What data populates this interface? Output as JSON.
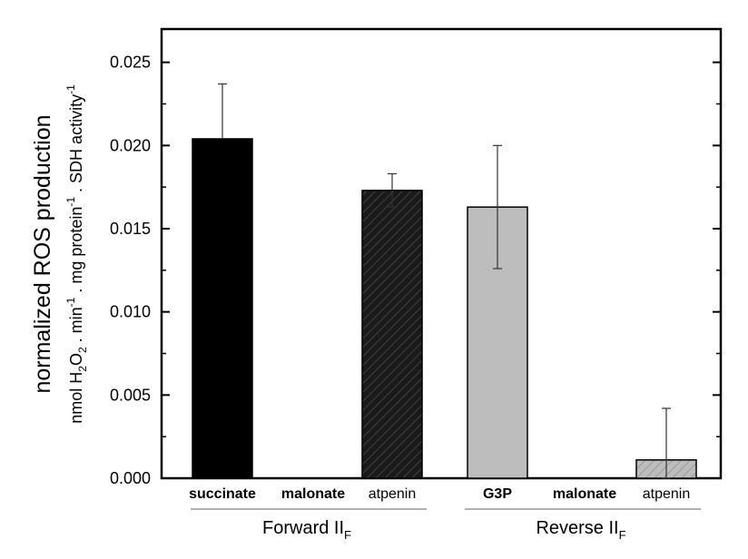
{
  "chart_data": {
    "type": "bar",
    "title": "",
    "ylabel_main": "normalized ROS production",
    "ylabel_units": {
      "nmol": "nmol H",
      "sub2": "2",
      "o": "O",
      "sub2b": "2",
      "min": " . min",
      "sup1a": "-1",
      "mg": " . mg protein",
      "sup1b": "-1",
      "sdh": " . SDH activity",
      "sup1c": "-1"
    },
    "ylim": [
      0,
      0.027
    ],
    "yticks": [
      "0.000",
      "0.005",
      "0.010",
      "0.015",
      "0.020",
      "0.025"
    ],
    "ytick_values": [
      0,
      0.005,
      0.01,
      0.015,
      0.02,
      0.025
    ],
    "categories": [
      "succinate",
      "malonate",
      "atpenin",
      "G3P",
      "malonate",
      "atpenin"
    ],
    "values": [
      0.0204,
      0.0,
      0.0173,
      0.0163,
      0.0,
      0.0011
    ],
    "errors": [
      0.0033,
      0.0,
      0.001,
      0.0037,
      0.0,
      0.0031
    ],
    "fills": [
      "solid-black",
      "none",
      "hatch-black",
      "solid-gray",
      "none",
      "hatch-gray"
    ],
    "colors": {
      "black": "#000000",
      "gray": "#bdbdbd",
      "frame": "#000000"
    },
    "groups": [
      {
        "label_main": "Forward II",
        "label_sub": "F"
      },
      {
        "label_main": "Reverse II",
        "label_sub": "F"
      }
    ]
  }
}
